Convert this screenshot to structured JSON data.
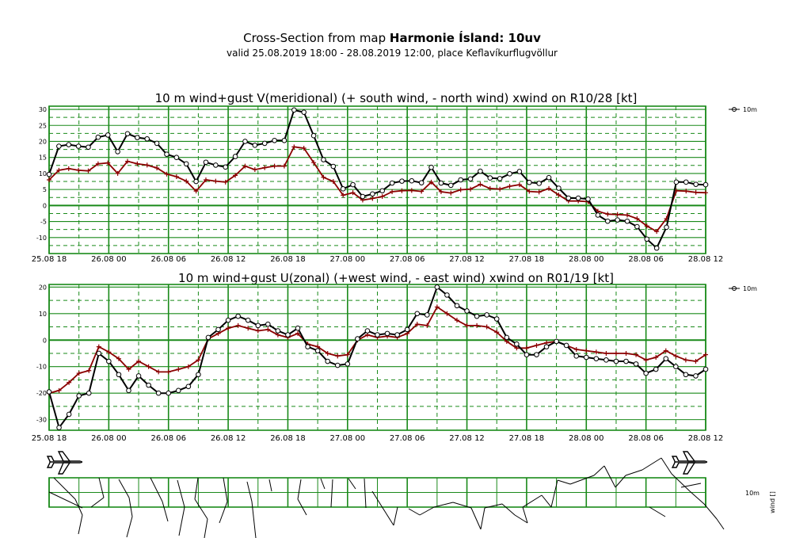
{
  "header": {
    "title_prefix": "Cross-Section from map ",
    "title_bold": "Harmonie Ísland: 10uv",
    "subtitle": "valid 25.08.2019 18:00 - 28.08.2019 12:00, place Keflavíkurflugvöllur"
  },
  "colors": {
    "grid": "#1a8a1a",
    "wind": "#000000",
    "gust": "#8b0000"
  },
  "chart_data": [
    {
      "type": "line",
      "title": "10 m wind+gust V(meridional) (+ south wind, - north wind) xwind on R10/28 [kt]",
      "legend": "10m",
      "legend_position": "top-right",
      "grid": true,
      "ylim": [
        -15,
        31
      ],
      "yticks": [
        "30",
        "25",
        "20",
        "15",
        "10",
        "5",
        "0",
        "-5",
        "-10"
      ],
      "xticks": [
        "25.08 18",
        "26.08 00",
        "26.08 06",
        "26.08 12",
        "26.08 18",
        "27.08 00",
        "27.08 06",
        "27.08 12",
        "27.08 18",
        "28.08 00",
        "28.08 06",
        "28.08 12"
      ],
      "series": [
        {
          "name": "10m",
          "marker": "circle",
          "values": [
            9.7,
            18.5,
            19,
            18.5,
            18.2,
            21.3,
            22,
            16.8,
            22.4,
            21.2,
            20.8,
            19.4,
            16,
            15,
            13,
            7.5,
            13.5,
            12.6,
            12,
            15.3,
            20,
            18.8,
            19.4,
            20.3,
            20.3,
            29.8,
            29.1,
            21.8,
            14.3,
            12.2,
            5.2,
            6.5,
            2.8,
            3.6,
            4.6,
            7,
            7.6,
            7.7,
            7.1,
            11.9,
            7,
            6.3,
            8,
            8.3,
            10.7,
            8.6,
            8.4,
            9.9,
            10.6,
            7.2,
            6.9,
            8.7,
            5.4,
            2.3,
            2.3,
            2,
            -3,
            -4.9,
            -4.5,
            -4.9,
            -6.6,
            -10.5,
            -13.3,
            -6.8,
            7.3,
            7.3,
            6.6,
            6.5
          ]
        },
        {
          "marker": "plus",
          "values": [
            8,
            11,
            11.5,
            11,
            10.8,
            13,
            13.3,
            10,
            13.8,
            13,
            12.6,
            11.7,
            9.8,
            9,
            7.6,
            4.5,
            8,
            7.6,
            7.3,
            9.4,
            12.3,
            11.2,
            11.8,
            12.3,
            12.3,
            18.3,
            17.9,
            13.4,
            8.8,
            7.5,
            3.2,
            4,
            1.7,
            2.2,
            2.8,
            4.3,
            4.6,
            4.7,
            4.4,
            7.3,
            4.3,
            3.9,
            4.9,
            5.1,
            6.6,
            5.3,
            5.1,
            6,
            6.5,
            4.4,
            4.2,
            5.3,
            3.3,
            1.4,
            1.4,
            1.2,
            -1.8,
            -2.7,
            -2.8,
            -3,
            -4.1,
            -6.4,
            -8.1,
            -4.1,
            4.6,
            4.5,
            4.1,
            4
          ]
        }
      ]
    },
    {
      "type": "line",
      "title": "10 m wind+gust U(zonal) (+west wind, - east wind) xwind on R01/19 [kt]",
      "legend": "10m",
      "legend_position": "top-right",
      "grid": true,
      "ylim": [
        -34,
        21
      ],
      "yticks": [
        "20",
        "10",
        "0",
        "-10",
        "-20",
        "-30"
      ],
      "xticks": [
        "25.08 18",
        "26.08 00",
        "26.08 06",
        "26.08 12",
        "26.08 18",
        "27.08 00",
        "27.08 06",
        "27.08 12",
        "27.08 18",
        "28.08 00",
        "28.08 06",
        "28.08 12"
      ],
      "series": [
        {
          "name": "10m",
          "marker": "circle",
          "values": [
            -19.5,
            -33,
            -28,
            -21,
            -20,
            -5,
            -8,
            -13,
            -19,
            -13.5,
            -17,
            -20,
            -20,
            -19,
            -17.5,
            -13,
            1,
            4,
            7.5,
            9,
            7.5,
            5.5,
            6,
            3.5,
            2,
            4.5,
            -2.5,
            -4,
            -8,
            -9.5,
            -9,
            0.5,
            3.5,
            2,
            2.5,
            2,
            4,
            10,
            9.5,
            20,
            17,
            13,
            11,
            9,
            9.5,
            8,
            1,
            -1.5,
            -5.5,
            -5.5,
            -2.5,
            -0.5,
            -2,
            -6,
            -6.5,
            -7,
            -7.5,
            -8,
            -8,
            -9,
            -12.5,
            -11,
            -7,
            -10,
            -13,
            -13.5,
            -11
          ]
        },
        {
          "marker": "plus",
          "values": [
            -20,
            -19,
            -16,
            -12.5,
            -11.5,
            -2.5,
            -4.5,
            -7,
            -11,
            -8,
            -10,
            -12,
            -12,
            -11,
            -10,
            -7.5,
            0.5,
            2.5,
            4.5,
            5.5,
            4.5,
            3.5,
            4,
            2,
            1,
            2.5,
            -1.5,
            -2.5,
            -5,
            -6,
            -5.5,
            0,
            2,
            1,
            1.5,
            1,
            2.5,
            6,
            5.5,
            12.5,
            10,
            7.5,
            5.5,
            5.5,
            5,
            3,
            -0.5,
            -3,
            -3,
            -2,
            -1,
            -0.5,
            -2,
            -3.5,
            -4,
            -4.5,
            -5,
            -5,
            -5,
            -5.5,
            -7.5,
            -6.5,
            -4,
            -6,
            -7.5,
            -8,
            -5.5
          ]
        }
      ]
    }
  ],
  "barbs_panel": {
    "label": "10m",
    "axis_label": "wind []"
  }
}
